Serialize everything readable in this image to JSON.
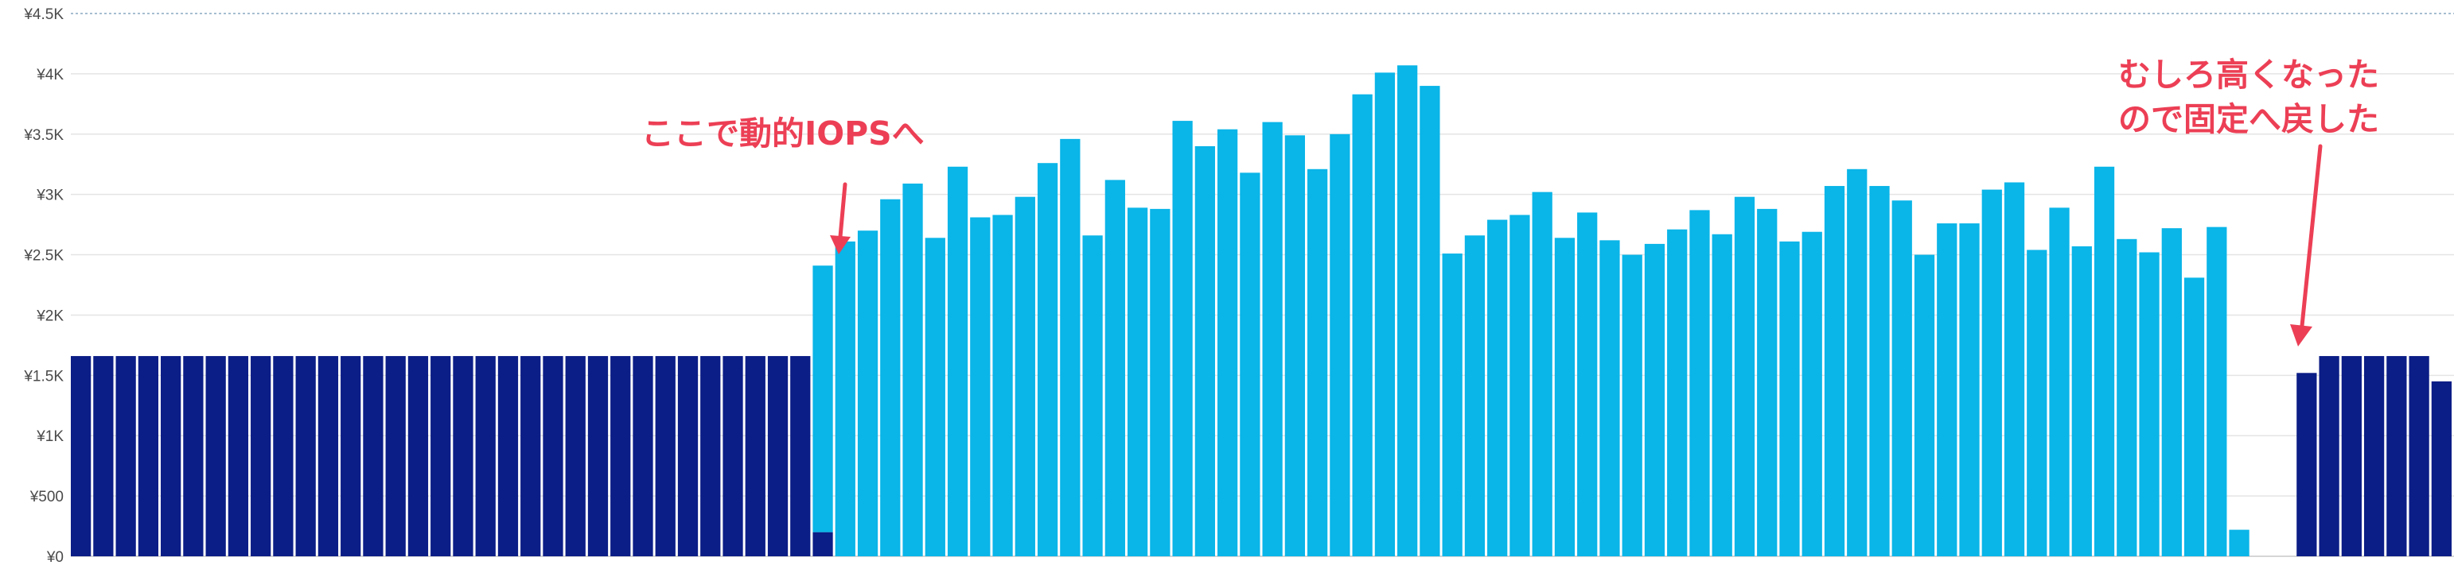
{
  "colors": {
    "fixed": "#0b1d86",
    "dynamic": "#0ab5e8",
    "annotation": "#ec3f55",
    "grid": "#e4e4e4",
    "axis_text": "#4a4a4a"
  },
  "chart_data": {
    "type": "bar",
    "stacked": true,
    "ylim": [
      0,
      4500
    ],
    "yticks": [
      {
        "value": 0,
        "label": "¥0"
      },
      {
        "value": 500,
        "label": "¥500"
      },
      {
        "value": 1000,
        "label": "¥1K"
      },
      {
        "value": 1500,
        "label": "¥1.5K"
      },
      {
        "value": 2000,
        "label": "¥2K"
      },
      {
        "value": 2500,
        "label": "¥2.5K"
      },
      {
        "value": 3000,
        "label": "¥3K"
      },
      {
        "value": 3500,
        "label": "¥3.5K"
      },
      {
        "value": 4000,
        "label": "¥4K"
      },
      {
        "value": 4500,
        "label": "¥4.5K"
      }
    ],
    "grid": true,
    "legend": "none",
    "series": [
      {
        "color_key": "fixed",
        "values": [
          1660,
          1660,
          1660,
          1660,
          1660,
          1660,
          1660,
          1660,
          1660,
          1660,
          1660,
          1660,
          1660,
          1660,
          1660,
          1660,
          1660,
          1660,
          1660,
          1660,
          1660,
          1660,
          1660,
          1660,
          1660,
          1660,
          1660,
          1660,
          1660,
          1660,
          1660,
          1660,
          1660,
          200,
          0,
          0,
          0,
          0,
          0,
          0,
          0,
          0,
          0,
          0,
          0,
          0,
          0,
          0,
          0,
          0,
          0,
          0,
          0,
          0,
          0,
          0,
          0,
          0,
          0,
          0,
          0,
          0,
          0,
          0,
          0,
          0,
          0,
          0,
          0,
          0,
          0,
          0,
          0,
          0,
          0,
          0,
          0,
          0,
          0,
          0,
          0,
          0,
          0,
          0,
          0,
          0,
          0,
          0,
          0,
          0,
          0,
          0,
          0,
          0,
          0,
          0,
          0,
          0,
          0,
          1520,
          1660,
          1660,
          1660,
          1660,
          1660,
          1450
        ]
      },
      {
        "color_key": "dynamic",
        "values": [
          0,
          0,
          0,
          0,
          0,
          0,
          0,
          0,
          0,
          0,
          0,
          0,
          0,
          0,
          0,
          0,
          0,
          0,
          0,
          0,
          0,
          0,
          0,
          0,
          0,
          0,
          0,
          0,
          0,
          0,
          0,
          0,
          0,
          2210,
          2610,
          2700,
          2960,
          3090,
          2640,
          3230,
          2810,
          2830,
          2980,
          3260,
          3460,
          2660,
          3120,
          2890,
          2880,
          3610,
          3400,
          3540,
          3180,
          3600,
          3490,
          3210,
          3500,
          3830,
          4010,
          4070,
          3900,
          2510,
          2660,
          2790,
          2830,
          3020,
          2640,
          2850,
          2620,
          2500,
          2590,
          2710,
          2870,
          2670,
          2980,
          2880,
          2610,
          2690,
          3070,
          3210,
          3070,
          2950,
          2500,
          2760,
          2760,
          3040,
          3100,
          2540,
          2890,
          2570,
          3230,
          2630,
          2520,
          2720,
          2310,
          2730,
          220,
          0,
          0,
          0,
          0,
          0,
          0
        ]
      }
    ],
    "annotations": [
      {
        "lines": [
          "ここで動的IOPSへ"
        ],
        "points_to_bar": 33
      },
      {
        "lines": [
          "むしろ高くなった",
          "ので固定へ戻した"
        ],
        "points_to_bar": 96
      }
    ]
  }
}
